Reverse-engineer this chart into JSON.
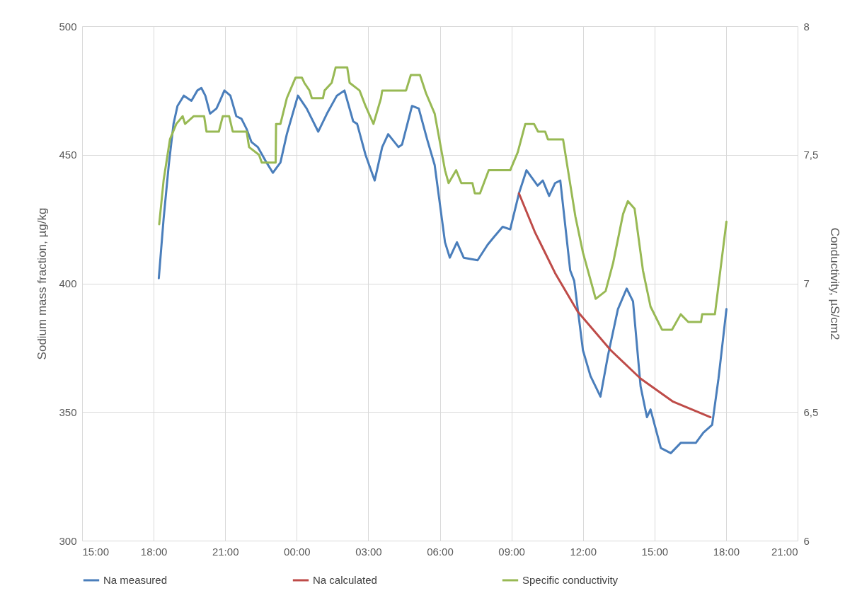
{
  "chart_data": {
    "type": "line",
    "ylabel": "Sodium mass fraction, µg/kg",
    "y2label": "Conductivity, µS/cm2",
    "legend": "bottom",
    "grid": true,
    "xlim": [
      "--01-01T15:00",
      "--01-02T21:00"
    ],
    "xticks": [
      {
        "value": "--01-01T15:00",
        "label": "15:00"
      },
      {
        "value": "--01-01T18:00",
        "label": "18:00"
      },
      {
        "value": "--01-01T21:00",
        "label": "21:00"
      },
      {
        "value": "--01-02T00:00",
        "label": "00:00"
      },
      {
        "value": "--01-02T03:00",
        "label": "03:00"
      },
      {
        "value": "--01-02T06:00",
        "label": "06:00"
      },
      {
        "value": "--01-02T09:00",
        "label": "09:00"
      },
      {
        "value": "--01-02T12:00",
        "label": "12:00"
      },
      {
        "value": "--01-02T15:00",
        "label": "15:00"
      },
      {
        "value": "--01-02T18:00",
        "label": "18:00"
      },
      {
        "value": "--01-02T21:00",
        "label": "21:00"
      }
    ],
    "ylim": [
      300,
      500
    ],
    "yticks": [
      300,
      350,
      400,
      450,
      500
    ],
    "y2lim": [
      6,
      8
    ],
    "y2ticks": [
      6,
      {
        "value": 6.5,
        "label": "6,5"
      },
      7,
      {
        "value": 7.5,
        "label": "7,5"
      },
      8
    ],
    "series": [
      {
        "name": "Na measured",
        "color": "#4a7ebb",
        "x": [
          "--01-01T18:13",
          "--01-01T18:25",
          "--01-01T18:38",
          "--01-01T18:50",
          "--01-01T19:00",
          "--01-01T19:16",
          "--01-01T19:35",
          "--01-01T19:50",
          "--01-01T20:00",
          "--01-01T20:10",
          "--01-01T20:22",
          "--01-01T20:38",
          "--01-01T20:47",
          "--01-01T20:58",
          "--01-01T21:13",
          "--01-01T21:28",
          "--01-01T21:41",
          "--01-01T21:54",
          "--01-01T22:06",
          "--01-01T22:22",
          "--01-01T22:44",
          "--01-01T23:00",
          "--01-01T23:19",
          "--01-01T23:35",
          "--01-02T00:03",
          "--01-02T00:25",
          "--01-02T00:54",
          "--01-02T01:16",
          "--01-02T01:41",
          "--01-02T02:00",
          "--01-02T02:22",
          "--01-02T02:32",
          "--01-02T02:53",
          "--01-02T03:16",
          "--01-02T03:35",
          "--01-02T03:50",
          "--01-02T04:16",
          "--01-02T04:25",
          "--01-02T04:50",
          "--01-02T05:07",
          "--01-02T05:28",
          "--01-02T05:47",
          "--01-02T06:13",
          "--01-02T06:25",
          "--01-02T06:43",
          "--01-02T07:00",
          "--01-02T07:35",
          "--01-02T08:00",
          "--01-02T08:16",
          "--01-02T08:38",
          "--01-02T08:57",
          "--01-02T09:19",
          "--01-02T09:38",
          "--01-02T10:06",
          "--01-02T10:19",
          "--01-02T10:35",
          "--01-02T10:50",
          "--01-02T11:03",
          "--01-02T11:28",
          "--01-02T11:38",
          "--01-02T12:00",
          "--01-02T12:19",
          "--01-02T12:44",
          "--01-02T13:03",
          "--01-02T13:28",
          "--01-02T13:50",
          "--01-02T14:06",
          "--01-02T14:25",
          "--01-02T14:41",
          "--01-02T14:50",
          "--01-02T15:16",
          "--01-02T15:41",
          "--01-02T16:06",
          "--01-02T16:44",
          "--01-02T17:03",
          "--01-02T17:25",
          "--01-02T17:41",
          "--01-02T18:01"
        ],
        "values": [
          402,
          425,
          446,
          462,
          469,
          473,
          471,
          475,
          476,
          473,
          466,
          468,
          471,
          475,
          473,
          465,
          464,
          460,
          455,
          453,
          447,
          443,
          447,
          458,
          473,
          468,
          459,
          466,
          473,
          475,
          463,
          462,
          450,
          440,
          453,
          458,
          453,
          454,
          469,
          468,
          456,
          446,
          416,
          410,
          416,
          410,
          409,
          415,
          418,
          422,
          421,
          435,
          444,
          438,
          440,
          434,
          439,
          440,
          405,
          401,
          374,
          364,
          356,
          372,
          390,
          398,
          393,
          360,
          348,
          351,
          336,
          334,
          338,
          338,
          342,
          345,
          363,
          390
        ]
      },
      {
        "name": "Na calculated",
        "color": "#be4b48",
        "x": [
          "--01-02T09:19",
          "--01-02T09:59",
          "--01-02T10:50",
          "--01-02T11:47",
          "--01-02T13:10",
          "--01-02T14:25",
          "--01-02T15:47",
          "--01-02T17:21"
        ],
        "values": [
          435,
          420,
          404,
          389,
          374,
          363,
          354,
          348
        ]
      },
      {
        "name": "Specific conductivity",
        "color": "#98b954",
        "axis": "y2",
        "x": [
          "--01-01T18:14",
          "--01-01T18:25",
          "--01-01T18:41",
          "--01-01T18:57",
          "--01-01T19:13",
          "--01-01T19:19",
          "--01-01T19:41",
          "--01-01T20:07",
          "--01-01T20:13",
          "--01-01T20:44",
          "--01-01T20:54",
          "--01-01T21:10",
          "--01-01T21:19",
          "--01-01T21:54",
          "--01-01T22:00",
          "--01-01T22:25",
          "--01-01T22:32",
          "--01-01T23:07",
          "--01-01T23:08",
          "--01-01T23:19",
          "--01-01T23:35",
          "--01-01T23:57",
          "--01-02T00:13",
          "--01-02T00:19",
          "--01-02T00:32",
          "--01-02T00:38",
          "--01-02T01:06",
          "--01-02T01:10",
          "--01-02T01:28",
          "--01-02T01:38",
          "--01-02T02:07",
          "--01-02T02:13",
          "--01-02T02:38",
          "--01-02T02:53",
          "--01-02T03:13",
          "--01-02T03:32",
          "--01-02T03:35",
          "--01-02T04:35",
          "--01-02T04:47",
          "--01-02T05:10",
          "--01-02T05:25",
          "--01-02T05:47",
          "--01-02T06:13",
          "--01-02T06:22",
          "--01-02T06:41",
          "--01-02T06:54",
          "--01-02T07:22",
          "--01-02T07:28",
          "--01-02T07:41",
          "--01-02T08:03",
          "--01-02T08:57",
          "--01-02T09:16",
          "--01-02T09:35",
          "--01-02T09:57",
          "--01-02T10:07",
          "--01-02T10:25",
          "--01-02T10:32",
          "--01-02T11:10",
          "--01-02T11:41",
          "--01-02T12:00",
          "--01-02T12:25",
          "--01-02T12:32",
          "--01-02T12:57",
          "--01-02T13:16",
          "--01-02T13:41",
          "--01-02T13:53",
          "--01-02T14:10",
          "--01-02T14:31",
          "--01-02T14:50",
          "--01-02T15:19",
          "--01-02T15:44",
          "--01-02T16:06",
          "--01-02T16:25",
          "--01-02T16:57",
          "--01-02T17:00",
          "--01-02T17:32",
          "--01-02T17:44",
          "--01-02T18:01"
        ],
        "values": [
          7.23,
          7.4,
          7.56,
          7.62,
          7.65,
          7.62,
          7.65,
          7.65,
          7.59,
          7.59,
          7.65,
          7.65,
          7.59,
          7.59,
          7.53,
          7.5,
          7.47,
          7.47,
          7.62,
          7.62,
          7.72,
          7.8,
          7.8,
          7.78,
          7.75,
          7.72,
          7.72,
          7.75,
          7.78,
          7.84,
          7.84,
          7.78,
          7.75,
          7.69,
          7.62,
          7.72,
          7.75,
          7.75,
          7.81,
          7.81,
          7.74,
          7.66,
          7.44,
          7.39,
          7.44,
          7.39,
          7.39,
          7.35,
          7.35,
          7.44,
          7.44,
          7.51,
          7.62,
          7.62,
          7.59,
          7.59,
          7.56,
          7.56,
          7.26,
          7.12,
          6.98,
          6.94,
          6.97,
          7.08,
          7.27,
          7.32,
          7.29,
          7.05,
          6.91,
          6.82,
          6.82,
          6.88,
          6.85,
          6.85,
          6.88,
          6.88,
          7.03,
          7.24
        ]
      }
    ]
  }
}
